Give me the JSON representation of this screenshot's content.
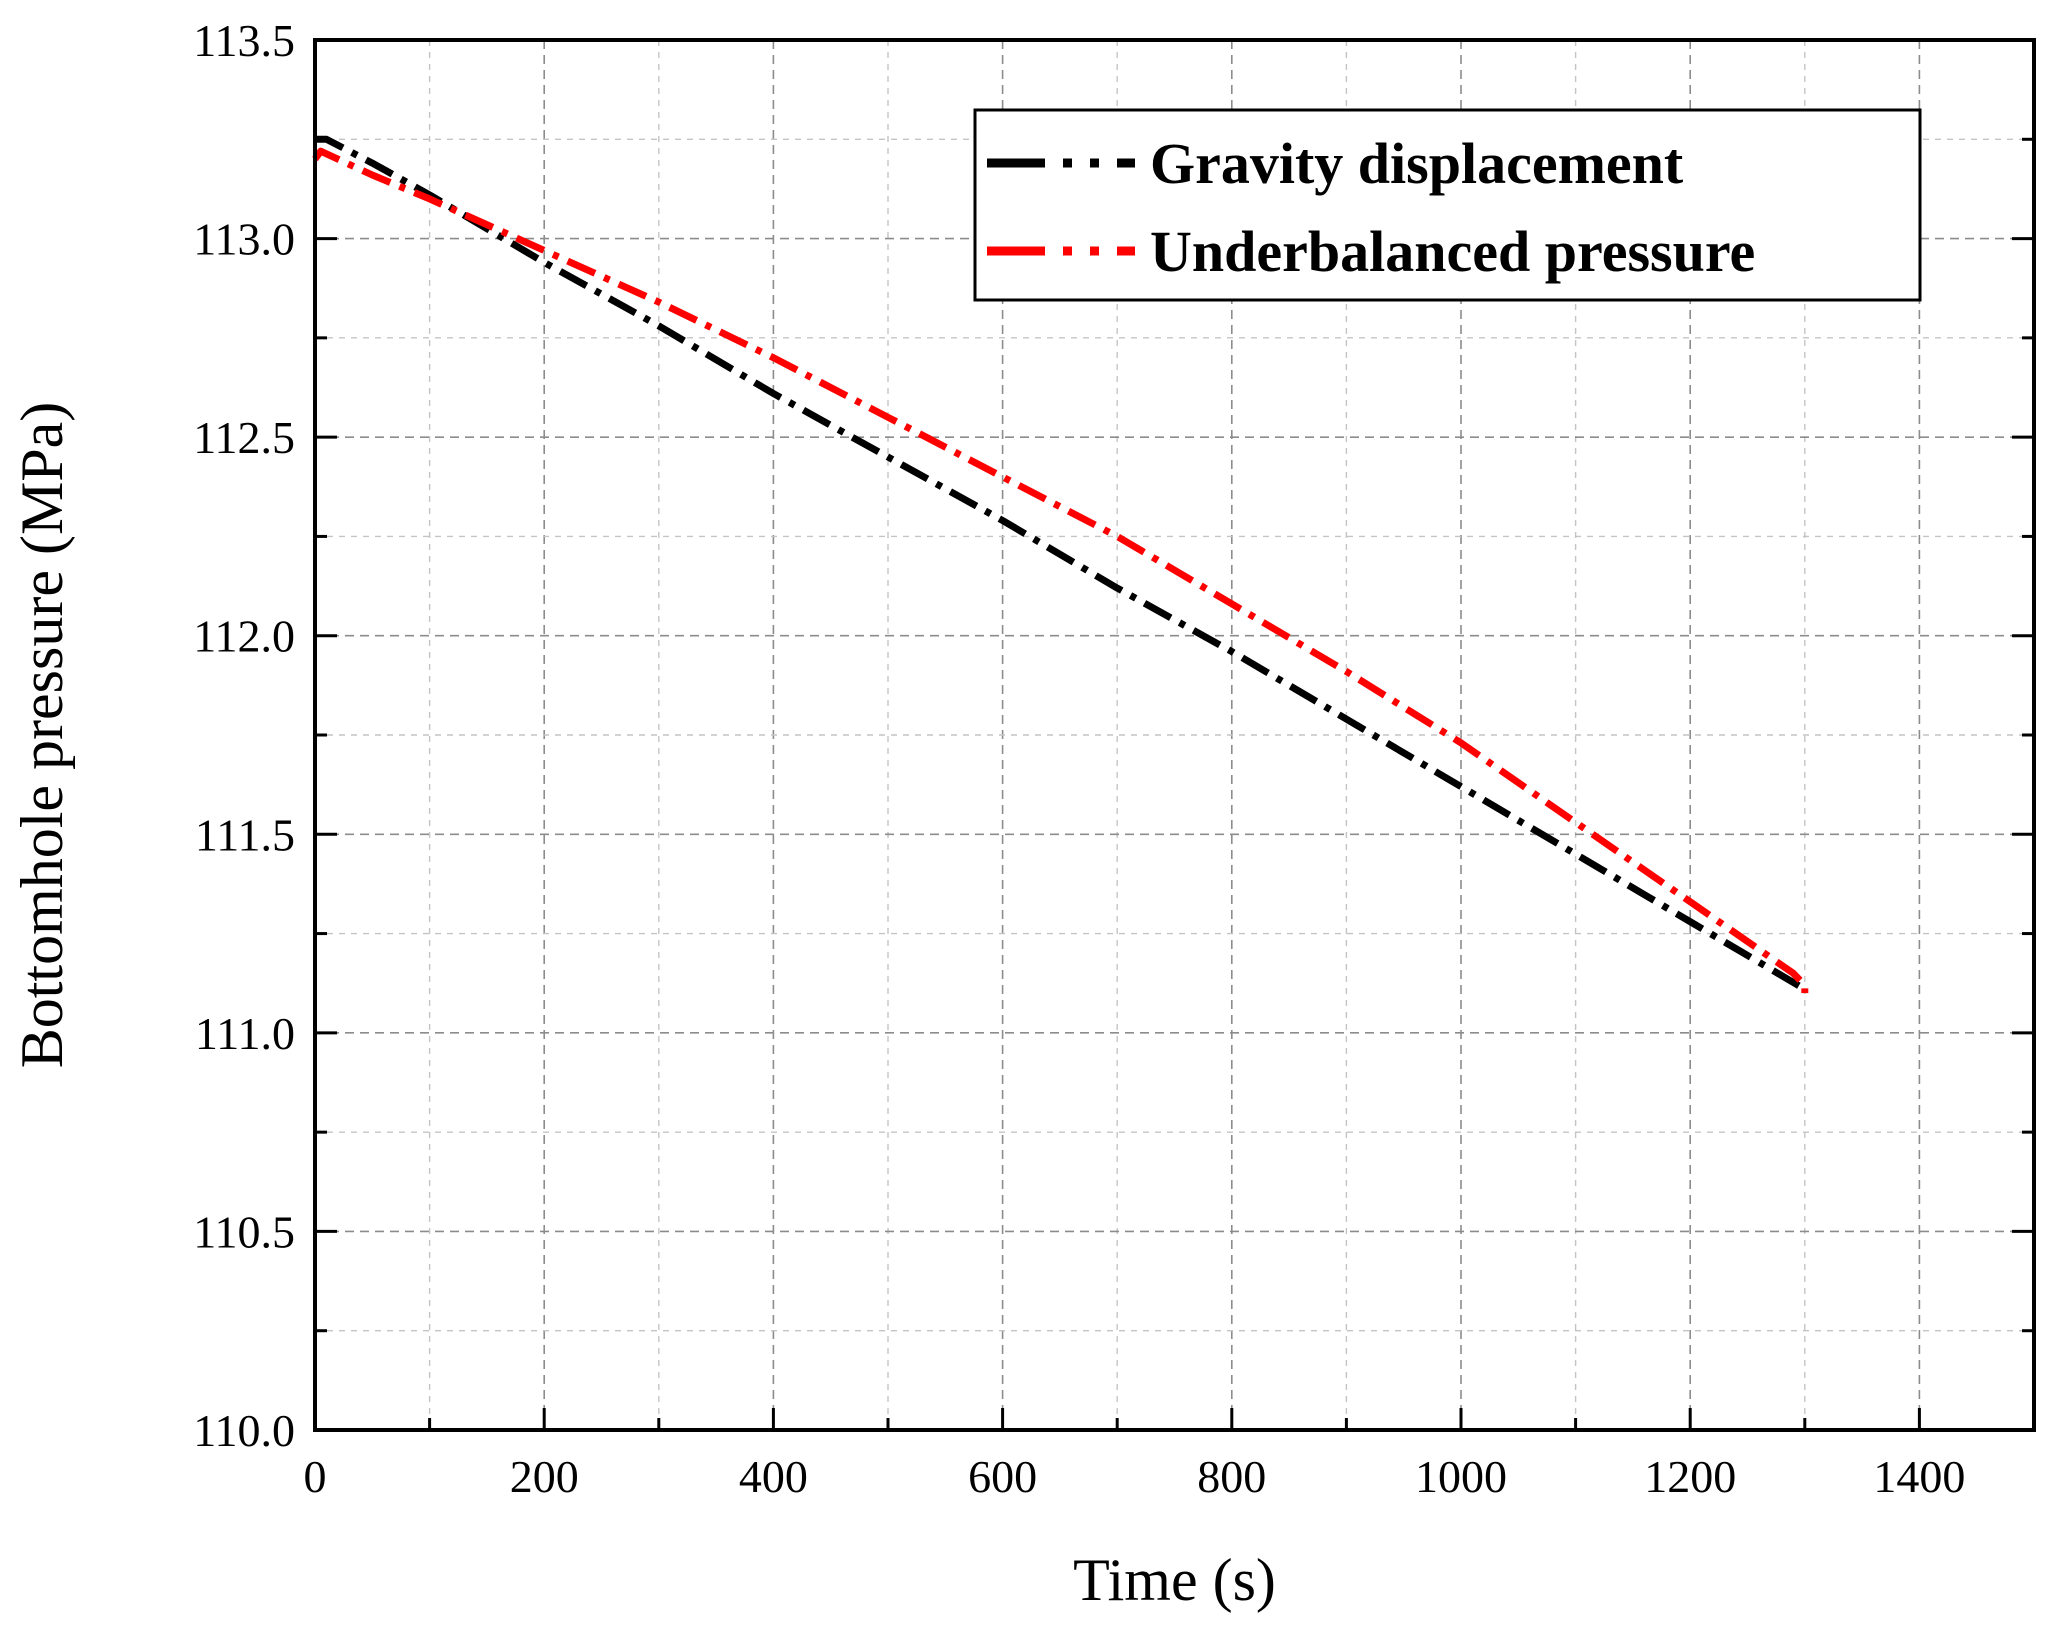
{
  "chart_data": {
    "type": "line",
    "xlabel": "Time (s)",
    "ylabel": "Bottomhole pressure (MPa)",
    "xlim": [
      0,
      1500
    ],
    "ylim": [
      110.0,
      113.5
    ],
    "xticks": [
      0,
      200,
      400,
      600,
      800,
      1000,
      1200,
      1400
    ],
    "xtick_labels": [
      "0",
      "200",
      "400",
      "600",
      "800",
      "1000",
      "1200",
      "1400"
    ],
    "yticks": [
      110.0,
      110.5,
      111.0,
      111.5,
      112.0,
      112.5,
      113.0,
      113.5
    ],
    "ytick_labels": [
      "110.0",
      "110.5",
      "111.0",
      "111.5",
      "112.0",
      "112.5",
      "113.0",
      "113.5"
    ],
    "grid": true,
    "legend_position": "top-right",
    "series": [
      {
        "name": "Gravity displacement",
        "color": "#000000",
        "x": [
          0,
          10,
          50,
          100,
          200,
          300,
          400,
          500,
          600,
          700,
          800,
          900,
          1000,
          1100,
          1200,
          1300
        ],
        "y": [
          113.25,
          113.25,
          113.19,
          113.11,
          112.94,
          112.78,
          112.61,
          112.45,
          112.29,
          112.12,
          111.96,
          111.79,
          111.62,
          111.45,
          111.28,
          111.11
        ]
      },
      {
        "name": "Underbalanced pressure",
        "color": "#ff0000",
        "x": [
          0,
          5,
          50,
          100,
          200,
          300,
          400,
          500,
          600,
          700,
          800,
          900,
          1000,
          1100,
          1200,
          1250,
          1290,
          1300,
          1300
        ],
        "y": [
          113.2,
          113.22,
          113.16,
          113.1,
          112.97,
          112.84,
          112.7,
          112.55,
          112.4,
          112.25,
          112.08,
          111.91,
          111.73,
          111.53,
          111.33,
          111.23,
          111.15,
          111.12,
          111.1
        ]
      }
    ]
  }
}
